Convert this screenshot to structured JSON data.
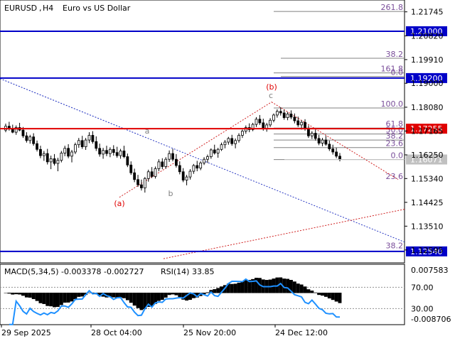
{
  "header": {
    "symbol": "EURUSD",
    "timeframe": "H4",
    "description": "Euro vs US Dollar"
  },
  "colors": {
    "bull_candle": "#000000",
    "bear_candle": "#000000",
    "support_resistance": "#0000c8",
    "key_level": "#e00000",
    "current_price_tag": "#c0c0c0",
    "wave_label": "#e00000",
    "fib_line": "#808080",
    "macd_hist": "#000000",
    "rsi_line": "#1e90ff"
  },
  "chart_data": {
    "type": "candlestick",
    "x_tick_labels": [
      "29 Sep 2025",
      "28 Oct 04:00",
      "25 Nov 20:00",
      "24 Dec 12:00"
    ],
    "y_tick_labels": [
      "1.21745",
      "1.20820",
      "1.19910",
      "1.19000",
      "1.18080",
      "1.17165",
      "1.16250",
      "1.15340",
      "1.14425",
      "1.13510",
      "1.12595"
    ],
    "ylim": [
      1.121,
      1.222
    ],
    "levels": [
      {
        "price": 1.21,
        "label": "1.21000",
        "style": "blue"
      },
      {
        "price": 1.192,
        "label": "1.19200",
        "style": "blue"
      },
      {
        "price": 1.17255,
        "label": "1.17255",
        "style": "red"
      },
      {
        "price": 1.1254,
        "label": "1.12540",
        "style": "blue"
      }
    ],
    "current_price": {
      "price": 1.16071,
      "label": "1.16071"
    },
    "fib_right": [
      {
        "label": "261.8",
        "price": 1.2176
      },
      {
        "label": "161.8",
        "price": 1.194
      },
      {
        "label": "100.0",
        "price": 1.1805
      },
      {
        "label": "61.8",
        "price": 1.1728
      },
      {
        "label": "50.0",
        "price": 1.1705
      },
      {
        "label": "38.2",
        "price": 1.1682
      },
      {
        "label": "23.6",
        "price": 1.1653
      },
      {
        "label": "0.0",
        "price": 1.1607
      }
    ],
    "fib_mid": [
      {
        "label": "38.2",
        "price": 1.1996
      },
      {
        "label": "0.0",
        "price": 1.1926
      }
    ],
    "fib_low": [
      {
        "label": "23.6",
        "price": 1.1526
      },
      {
        "label": "38.2",
        "price": 1.126
      }
    ],
    "wave_labels": [
      {
        "text": "(a)",
        "color": "red"
      },
      {
        "text": "(b)",
        "color": "red"
      },
      {
        "text": "a",
        "color": "gray"
      },
      {
        "text": "b",
        "color": "gray"
      },
      {
        "text": "c",
        "color": "gray"
      }
    ],
    "candles": [
      [
        1.172,
        1.1745,
        1.1712,
        1.1735
      ],
      [
        1.1735,
        1.1752,
        1.1718,
        1.1725
      ],
      [
        1.1725,
        1.1741,
        1.1708,
        1.1712
      ],
      [
        1.1712,
        1.1738,
        1.1702,
        1.173
      ],
      [
        1.173,
        1.1748,
        1.1716,
        1.172
      ],
      [
        1.172,
        1.1732,
        1.169,
        1.1698
      ],
      [
        1.1698,
        1.1712,
        1.1672,
        1.168
      ],
      [
        1.168,
        1.1702,
        1.1668,
        1.1694
      ],
      [
        1.1694,
        1.1708,
        1.166,
        1.1668
      ],
      [
        1.1668,
        1.168,
        1.1638,
        1.1646
      ],
      [
        1.1646,
        1.166,
        1.1612,
        1.1622
      ],
      [
        1.1622,
        1.164,
        1.1602,
        1.163
      ],
      [
        1.163,
        1.1648,
        1.1588,
        1.1598
      ],
      [
        1.1598,
        1.1622,
        1.157,
        1.161
      ],
      [
        1.161,
        1.1628,
        1.1584,
        1.1592
      ],
      [
        1.1592,
        1.1614,
        1.1562,
        1.1604
      ],
      [
        1.1604,
        1.164,
        1.1596,
        1.1632
      ],
      [
        1.1632,
        1.166,
        1.162,
        1.165
      ],
      [
        1.165,
        1.1666,
        1.1612,
        1.162
      ],
      [
        1.162,
        1.1644,
        1.1596,
        1.1636
      ],
      [
        1.1636,
        1.1672,
        1.1628,
        1.1664
      ],
      [
        1.1664,
        1.169,
        1.1652,
        1.168
      ],
      [
        1.168,
        1.1698,
        1.1648,
        1.1656
      ],
      [
        1.1656,
        1.169,
        1.1644,
        1.1682
      ],
      [
        1.1682,
        1.1712,
        1.167,
        1.17
      ],
      [
        1.17,
        1.1716,
        1.1668,
        1.1676
      ],
      [
        1.1676,
        1.1696,
        1.164,
        1.165
      ],
      [
        1.165,
        1.1668,
        1.1618,
        1.1628
      ],
      [
        1.1628,
        1.1652,
        1.161,
        1.1642
      ],
      [
        1.1642,
        1.166,
        1.162,
        1.163
      ],
      [
        1.163,
        1.1654,
        1.1616,
        1.1646
      ],
      [
        1.1646,
        1.1662,
        1.1622,
        1.1634
      ],
      [
        1.1634,
        1.1656,
        1.1614,
        1.1622
      ],
      [
        1.1622,
        1.1648,
        1.161,
        1.164
      ],
      [
        1.164,
        1.166,
        1.1612,
        1.1618
      ],
      [
        1.1618,
        1.163,
        1.1578,
        1.1586
      ],
      [
        1.1586,
        1.16,
        1.1548,
        1.1556
      ],
      [
        1.1556,
        1.1572,
        1.152,
        1.153
      ],
      [
        1.153,
        1.1548,
        1.1502,
        1.151
      ],
      [
        1.151,
        1.153,
        1.1488,
        1.1498
      ],
      [
        1.1498,
        1.154,
        1.148,
        1.1534
      ],
      [
        1.1534,
        1.1568,
        1.1522,
        1.156
      ],
      [
        1.156,
        1.1578,
        1.1536,
        1.1542
      ],
      [
        1.1542,
        1.158,
        1.1534,
        1.1572
      ],
      [
        1.1572,
        1.1608,
        1.1562,
        1.1598
      ],
      [
        1.1598,
        1.1612,
        1.157,
        1.158
      ],
      [
        1.158,
        1.1616,
        1.1572,
        1.1608
      ],
      [
        1.1608,
        1.1642,
        1.1598,
        1.163
      ],
      [
        1.163,
        1.1648,
        1.16,
        1.1608
      ],
      [
        1.1608,
        1.1628,
        1.1576,
        1.1584
      ],
      [
        1.1584,
        1.16,
        1.155,
        1.156
      ],
      [
        1.156,
        1.1574,
        1.152,
        1.1528
      ],
      [
        1.1528,
        1.1548,
        1.1508,
        1.154
      ],
      [
        1.154,
        1.157,
        1.153,
        1.1562
      ],
      [
        1.1562,
        1.159,
        1.1552,
        1.1584
      ],
      [
        1.1584,
        1.1602,
        1.1562,
        1.1574
      ],
      [
        1.1574,
        1.16,
        1.1566,
        1.1594
      ],
      [
        1.1594,
        1.1616,
        1.1586,
        1.1608
      ],
      [
        1.1608,
        1.1626,
        1.1594,
        1.1618
      ],
      [
        1.1618,
        1.165,
        1.161,
        1.1644
      ],
      [
        1.1644,
        1.1664,
        1.1626,
        1.1632
      ],
      [
        1.1632,
        1.1652,
        1.1614,
        1.1646
      ],
      [
        1.1646,
        1.1672,
        1.164,
        1.1664
      ],
      [
        1.1664,
        1.1682,
        1.165,
        1.1674
      ],
      [
        1.1674,
        1.1694,
        1.1664,
        1.1688
      ],
      [
        1.1688,
        1.1702,
        1.166,
        1.1668
      ],
      [
        1.1668,
        1.1688,
        1.165,
        1.168
      ],
      [
        1.168,
        1.1708,
        1.1672,
        1.17
      ],
      [
        1.17,
        1.1722,
        1.169,
        1.1716
      ],
      [
        1.1716,
        1.1738,
        1.1706,
        1.173
      ],
      [
        1.173,
        1.1746,
        1.1712,
        1.1722
      ],
      [
        1.1722,
        1.1748,
        1.1716,
        1.1742
      ],
      [
        1.1742,
        1.177,
        1.1732,
        1.1762
      ],
      [
        1.1762,
        1.1778,
        1.174,
        1.1748
      ],
      [
        1.1748,
        1.1764,
        1.1718,
        1.1726
      ],
      [
        1.1726,
        1.1748,
        1.1714,
        1.174
      ],
      [
        1.174,
        1.1766,
        1.1732,
        1.1758
      ],
      [
        1.1758,
        1.1784,
        1.175,
        1.1778
      ],
      [
        1.1778,
        1.18,
        1.1768,
        1.1792
      ],
      [
        1.1792,
        1.1808,
        1.1776,
        1.1786
      ],
      [
        1.1786,
        1.1798,
        1.176,
        1.1768
      ],
      [
        1.1768,
        1.179,
        1.1758,
        1.1782
      ],
      [
        1.1782,
        1.1796,
        1.1762,
        1.177
      ],
      [
        1.177,
        1.1784,
        1.1746,
        1.1756
      ],
      [
        1.1756,
        1.1772,
        1.1732,
        1.174
      ],
      [
        1.174,
        1.1758,
        1.1722,
        1.175
      ],
      [
        1.175,
        1.1762,
        1.1718,
        1.1726
      ],
      [
        1.1726,
        1.1738,
        1.169,
        1.1698
      ],
      [
        1.1698,
        1.1716,
        1.1686,
        1.1708
      ],
      [
        1.1708,
        1.1722,
        1.168,
        1.1688
      ],
      [
        1.1688,
        1.1702,
        1.1662,
        1.167
      ],
      [
        1.167,
        1.169,
        1.1658,
        1.1682
      ],
      [
        1.1682,
        1.1698,
        1.166,
        1.1666
      ],
      [
        1.1666,
        1.168,
        1.164,
        1.1648
      ],
      [
        1.1648,
        1.1664,
        1.1626,
        1.1636
      ],
      [
        1.1636,
        1.1652,
        1.1612,
        1.162
      ],
      [
        1.162,
        1.1632,
        1.16,
        1.1607
      ]
    ],
    "macd": {
      "label": "MACD(5,34,5) -0.003378 -0.002727",
      "y_tick_labels": [
        "0.007583",
        "-0.008706"
      ]
    },
    "rsi": {
      "label": "RSI(14) 33.85",
      "levels": [
        70.0,
        30.0
      ],
      "level_labels": [
        "70.00",
        "30.00"
      ]
    }
  }
}
